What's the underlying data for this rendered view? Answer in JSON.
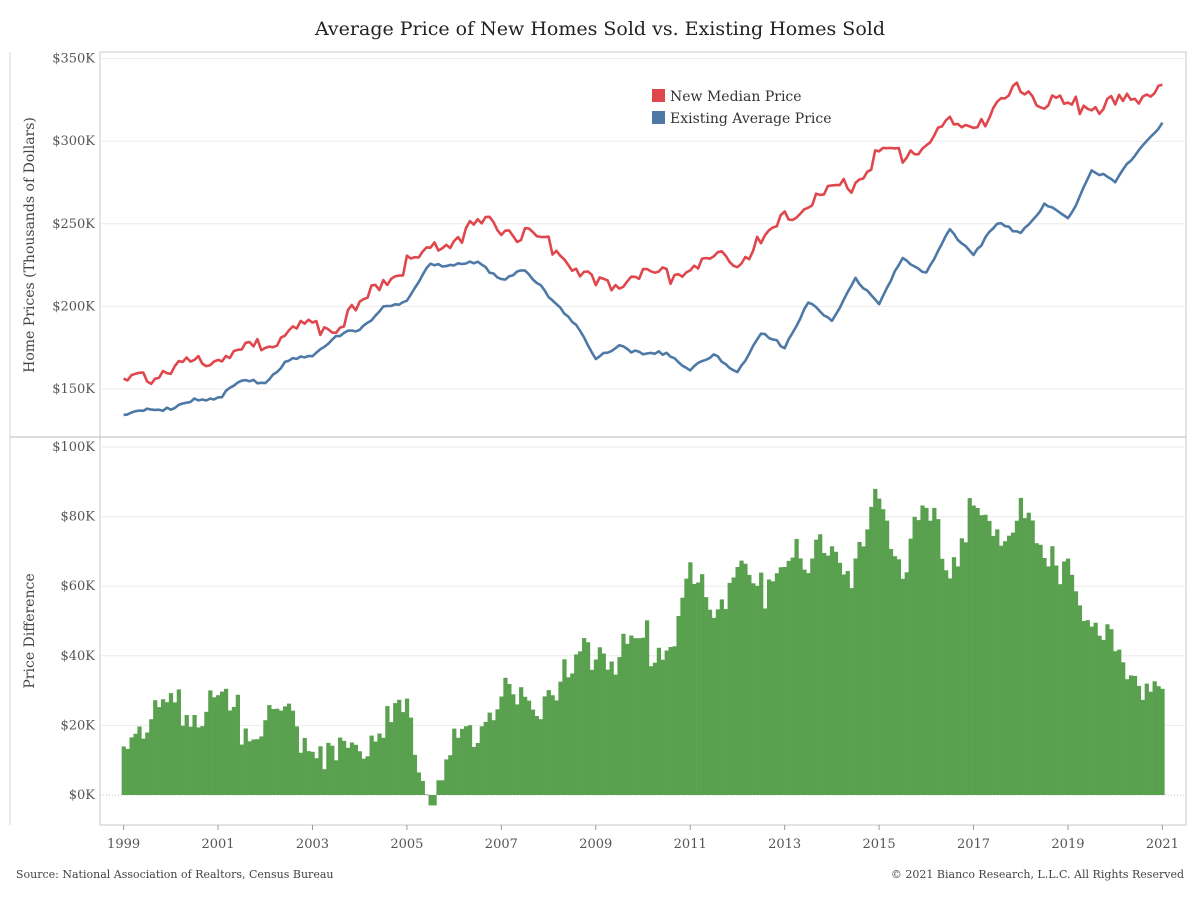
{
  "header": {
    "title": "Average Price of New Homes Sold vs. Existing Homes Sold"
  },
  "footer": {
    "source": "Source: National Association of Realtors, Census Bureau",
    "copyright": "© 2021 Bianco Research, L.L.C. All Rights Reserved"
  },
  "colors": {
    "new": "#e0474c",
    "existing": "#4e79a7",
    "difference": "#59a14f"
  },
  "chart_data": [
    {
      "type": "line",
      "title": "Average Price of New Homes Sold vs. Existing Homes Sold",
      "ylabel": "Home Prices (Thousands of Dollars)",
      "ylim": [
        125,
        355
      ],
      "y_ticks": [
        150,
        200,
        250,
        300,
        350
      ],
      "y_tick_labels": [
        "$150K",
        "$200K",
        "$250K",
        "$300K",
        "$350K"
      ],
      "grid": true,
      "legend": "top-right",
      "series": [
        {
          "name": "New Median Price",
          "color": "#e0474c",
          "points": [
            [
              1999.0,
              153
            ],
            [
              1999.5,
              157
            ],
            [
              2000.0,
              163
            ],
            [
              2000.5,
              166
            ],
            [
              2001.0,
              172
            ],
            [
              2001.5,
              171
            ],
            [
              2002.0,
              178
            ],
            [
              2002.5,
              186
            ],
            [
              2003.0,
              187
            ],
            [
              2003.5,
              190
            ],
            [
              2004.0,
              198
            ],
            [
              2004.5,
              217
            ],
            [
              2005.0,
              226
            ],
            [
              2005.5,
              233
            ],
            [
              2006.0,
              241
            ],
            [
              2006.5,
              248
            ],
            [
              2007.0,
              249
            ],
            [
              2007.5,
              242
            ],
            [
              2008.0,
              238
            ],
            [
              2008.5,
              226
            ],
            [
              2009.0,
              212
            ],
            [
              2009.5,
              216
            ],
            [
              2010.0,
              221
            ],
            [
              2010.5,
              218
            ],
            [
              2011.0,
              225
            ],
            [
              2011.5,
              227
            ],
            [
              2012.0,
              229
            ],
            [
              2012.5,
              238
            ],
            [
              2013.0,
              252
            ],
            [
              2013.5,
              262
            ],
            [
              2014.0,
              268
            ],
            [
              2014.5,
              276
            ],
            [
              2015.0,
              291
            ],
            [
              2015.5,
              292
            ],
            [
              2016.0,
              300
            ],
            [
              2016.5,
              309
            ],
            [
              2017.0,
              311
            ],
            [
              2017.5,
              319
            ],
            [
              2018.0,
              333
            ],
            [
              2018.5,
              325
            ],
            [
              2019.0,
              321
            ],
            [
              2019.5,
              322
            ],
            [
              2020.0,
              322
            ],
            [
              2020.5,
              326
            ],
            [
              2021.0,
              336
            ]
          ]
        },
        {
          "name": "Existing Average Price",
          "color": "#4e79a7",
          "points": [
            [
              1999.0,
              133
            ],
            [
              1999.5,
              139
            ],
            [
              2000.0,
              137
            ],
            [
              2000.5,
              143
            ],
            [
              2001.0,
              145
            ],
            [
              2001.5,
              154
            ],
            [
              2002.0,
              155
            ],
            [
              2002.5,
              167
            ],
            [
              2003.0,
              170
            ],
            [
              2003.5,
              183
            ],
            [
              2004.0,
              185
            ],
            [
              2004.5,
              200
            ],
            [
              2005.0,
              203
            ],
            [
              2005.5,
              226
            ],
            [
              2006.0,
              225
            ],
            [
              2006.5,
              226
            ],
            [
              2007.0,
              217
            ],
            [
              2007.5,
              221
            ],
            [
              2008.0,
              207
            ],
            [
              2008.5,
              192
            ],
            [
              2009.0,
              168
            ],
            [
              2009.5,
              177
            ],
            [
              2010.0,
              170
            ],
            [
              2010.5,
              172
            ],
            [
              2011.0,
              162
            ],
            [
              2011.5,
              170
            ],
            [
              2012.0,
              161
            ],
            [
              2012.5,
              183
            ],
            [
              2013.0,
              176
            ],
            [
              2013.5,
              203
            ],
            [
              2014.0,
              190
            ],
            [
              2014.5,
              218
            ],
            [
              2015.0,
              200
            ],
            [
              2015.5,
              230
            ],
            [
              2016.0,
              220
            ],
            [
              2016.5,
              246
            ],
            [
              2017.0,
              232
            ],
            [
              2017.5,
              250
            ],
            [
              2018.0,
              245
            ],
            [
              2018.5,
              262
            ],
            [
              2019.0,
              252
            ],
            [
              2019.5,
              283
            ],
            [
              2020.0,
              275
            ],
            [
              2020.5,
              295
            ],
            [
              2021.0,
              311
            ]
          ]
        }
      ]
    },
    {
      "type": "bar",
      "ylabel": "Price Difference",
      "ylim": [
        -4,
        100
      ],
      "y_ticks": [
        0,
        20,
        40,
        60,
        80,
        100
      ],
      "y_tick_labels": [
        "$0K",
        "$20K",
        "$40K",
        "$60K",
        "$80K",
        "$100K"
      ],
      "x_ticks": [
        1999,
        2001,
        2003,
        2005,
        2007,
        2009,
        2011,
        2013,
        2015,
        2017,
        2019,
        2021
      ],
      "grid": true,
      "series": [
        {
          "name": "",
          "color": "#59a14f",
          "points": [
            [
              1999.0,
              19
            ],
            [
              1999.5,
              23
            ],
            [
              2000.0,
              25
            ],
            [
              2000.5,
              25
            ],
            [
              2001.0,
              26
            ],
            [
              2001.5,
              21
            ],
            [
              2002.0,
              23
            ],
            [
              2002.5,
              20
            ],
            [
              2003.0,
              17
            ],
            [
              2003.5,
              9
            ],
            [
              2004.0,
              16
            ],
            [
              2004.5,
              19
            ],
            [
              2005.0,
              22
            ],
            [
              2005.5,
              3
            ],
            [
              2006.0,
              13
            ],
            [
              2006.5,
              19
            ],
            [
              2007.0,
              29
            ],
            [
              2007.5,
              24
            ],
            [
              2008.0,
              31
            ],
            [
              2008.5,
              33
            ],
            [
              2009.0,
              44
            ],
            [
              2009.5,
              39
            ],
            [
              2010.0,
              45
            ],
            [
              2010.5,
              42
            ],
            [
              2011.0,
              60
            ],
            [
              2011.5,
              55
            ],
            [
              2012.0,
              64
            ],
            [
              2012.5,
              58
            ],
            [
              2013.0,
              72
            ],
            [
              2013.5,
              62
            ],
            [
              2014.0,
              76
            ],
            [
              2014.5,
              62
            ],
            [
              2015.0,
              85
            ],
            [
              2015.5,
              68
            ],
            [
              2016.0,
              80
            ],
            [
              2016.5,
              67
            ],
            [
              2017.0,
              82
            ],
            [
              2017.5,
              70
            ],
            [
              2018.0,
              88
            ],
            [
              2018.5,
              63
            ],
            [
              2019.0,
              68
            ],
            [
              2019.5,
              42
            ],
            [
              2020.0,
              47
            ],
            [
              2020.5,
              33
            ],
            [
              2021.0,
              25
            ]
          ]
        }
      ]
    }
  ]
}
